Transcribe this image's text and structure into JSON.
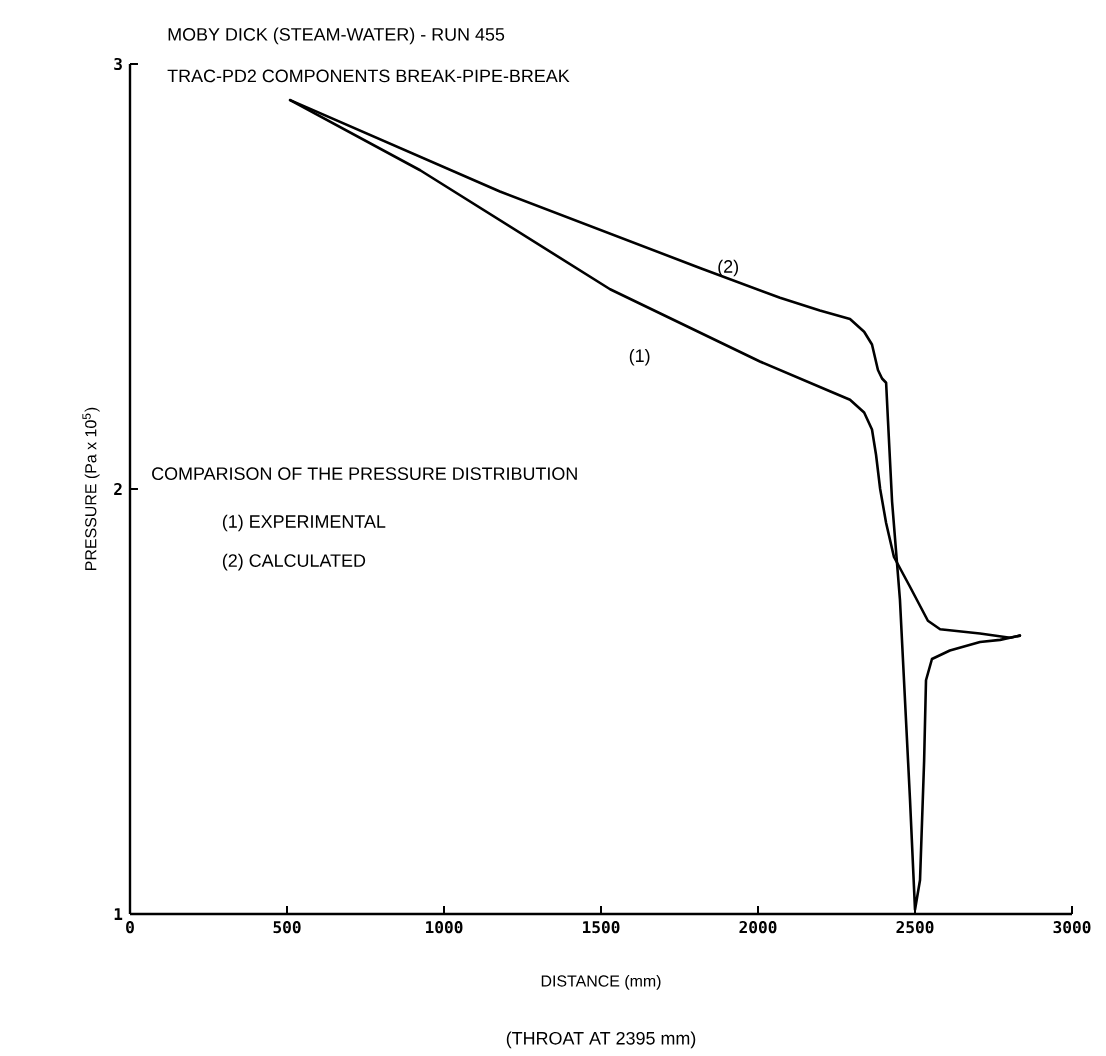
{
  "chart_data": {
    "type": "line",
    "title": "MOBY DICK (STEAM-WATER) - RUN 455",
    "subtitle": "TRAC-PD2 COMPONENTS  BREAK-PIPE-BREAK",
    "xlabel": "DISTANCE (mm)",
    "ylabel": "PRESSURE (Pa x 10$^{5}$)",
    "xlim": [
      0,
      3000
    ],
    "ylim": [
      1,
      3
    ],
    "xticks": [
      0,
      500,
      1000,
      1500,
      2000,
      2500,
      3000
    ],
    "yticks": [
      1,
      2,
      3
    ],
    "annotations": [
      "(THROAT AT 2395 mm)",
      "COMPARISON OF THE PRESSURE DISTRIBUTION",
      "(1)  EXPERIMENTAL",
      "(2)  CALCULATED",
      "(1)",
      "(2)"
    ],
    "series": [
      {
        "color": "#000000",
        "x": [
          510,
          924,
          1529,
          2006,
          2229,
          2293,
          2338,
          2363,
          2376,
          2389,
          2408,
          2433,
          2484,
          2541,
          2580,
          2707,
          2803,
          2834
        ],
        "values": [
          2.915,
          2.75,
          2.47,
          2.3,
          2.23,
          2.21,
          2.18,
          2.14,
          2.08,
          2.0,
          1.92,
          1.84,
          1.77,
          1.69,
          1.67,
          1.66,
          1.65,
          1.655
        ]
      },
      {
        "color": "#000000",
        "x": [
          510,
          1178,
          1815,
          2070,
          2197,
          2293,
          2338,
          2363,
          2382,
          2395,
          2408,
          2414,
          2427,
          2452,
          2484,
          2500,
          2516,
          2529,
          2535,
          2554,
          2611,
          2707,
          2771,
          2834
        ],
        "values": [
          2.915,
          2.7,
          2.52,
          2.45,
          2.42,
          2.4,
          2.37,
          2.34,
          2.28,
          2.26,
          2.25,
          2.16,
          1.97,
          1.74,
          1.27,
          1.01,
          1.08,
          1.36,
          1.55,
          1.6,
          1.62,
          1.64,
          1.645,
          1.655
        ]
      }
    ]
  }
}
